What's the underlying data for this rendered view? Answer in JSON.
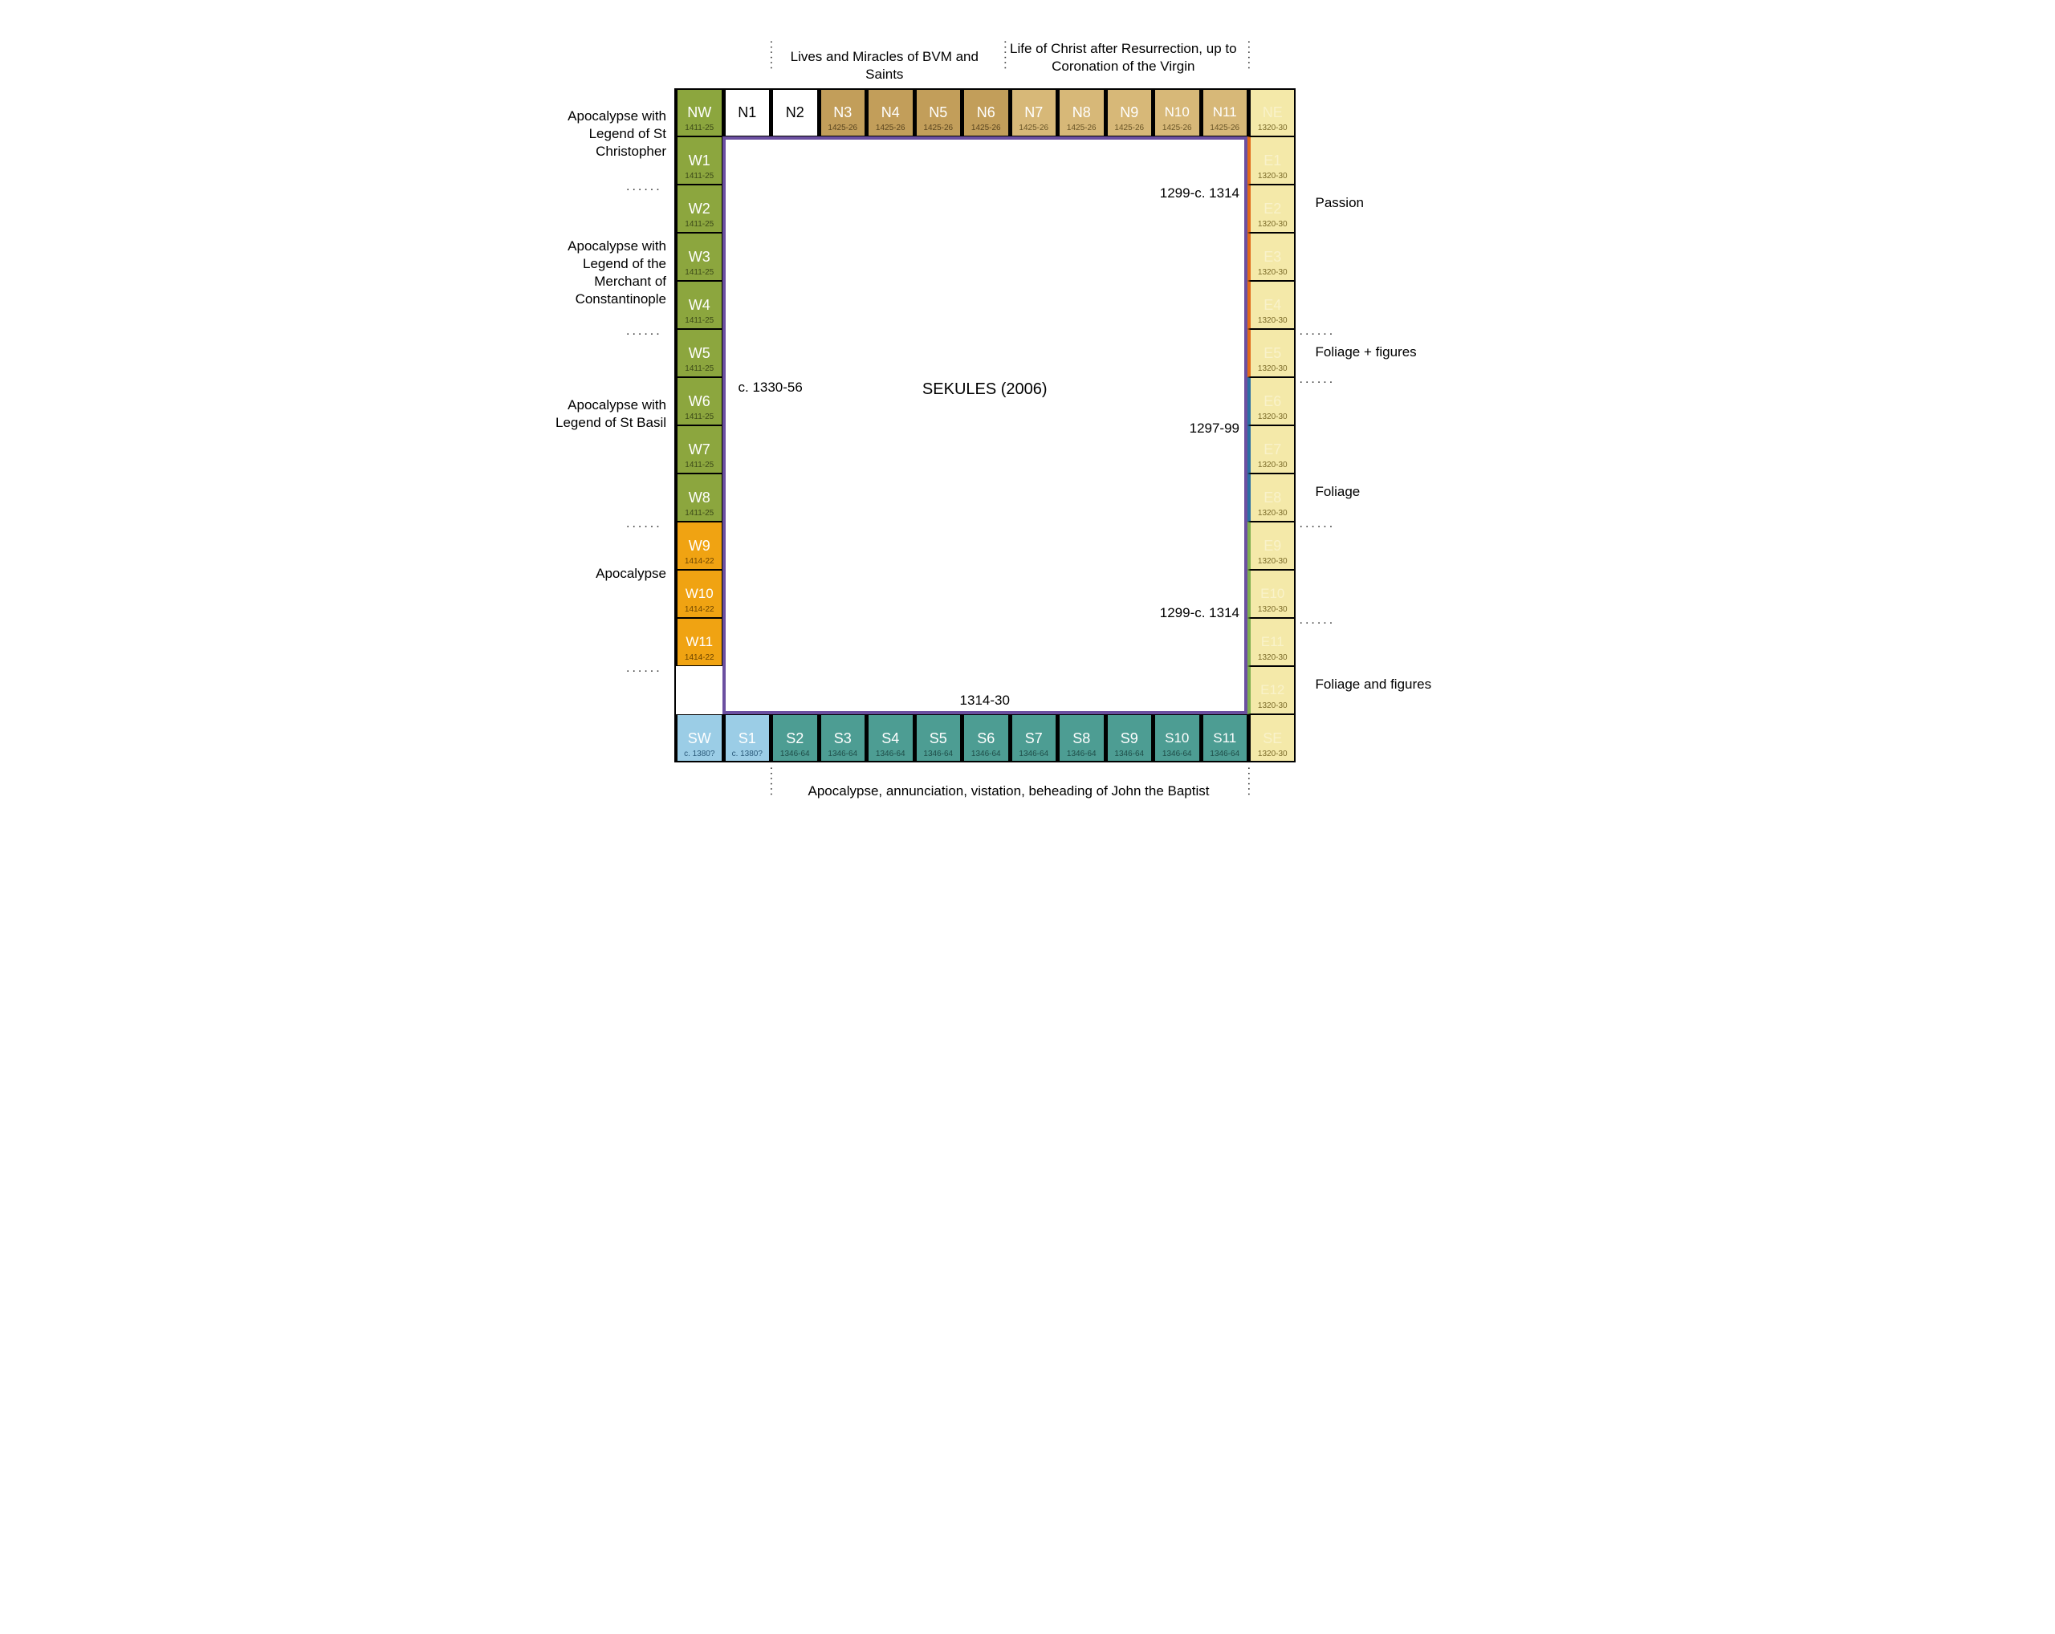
{
  "layout": {
    "ox": 200,
    "oy": 90,
    "cw": 62,
    "ch": 62,
    "ncw": 59.5,
    "nch": 60,
    "cols": 13,
    "rows": 14,
    "total_w": 1280,
    "total_h": 1018
  },
  "colors": {
    "green": "#8ca63e",
    "orange": "#f0a312",
    "lightblue": "#9bcde6",
    "tan": "#c29e5a",
    "lighttan": "#d7b878",
    "cream": "#f4e9a9",
    "teal": "#4d9d93",
    "teal_dark": "#3f8d84",
    "white": "#ffffff",
    "ne_yellow": "#f4e9a9",
    "blue_stroke": "#2b6fa3",
    "orange_stroke": "#e06a1a",
    "purple": "#6b4fa0",
    "green_stroke": "#7fae4f"
  },
  "cells": {
    "north": [
      {
        "code": "NW",
        "date": "1411-25",
        "bg": "green",
        "codeColor": "#fff",
        "dateColor": "#3c4a18"
      },
      {
        "code": "N1",
        "date": "",
        "bg": "white",
        "codeColor": "#000"
      },
      {
        "code": "N2",
        "date": "",
        "bg": "white",
        "codeColor": "#000"
      },
      {
        "code": "N3",
        "date": "1425-26",
        "bg": "tan",
        "codeColor": "#fff",
        "dateColor": "#5a4620"
      },
      {
        "code": "N4",
        "date": "1425-26",
        "bg": "tan",
        "codeColor": "#fff",
        "dateColor": "#5a4620"
      },
      {
        "code": "N5",
        "date": "1425-26",
        "bg": "tan",
        "codeColor": "#fff",
        "dateColor": "#5a4620"
      },
      {
        "code": "N6",
        "date": "1425-26",
        "bg": "tan",
        "codeColor": "#fff",
        "dateColor": "#5a4620"
      },
      {
        "code": "N7",
        "date": "1425-26",
        "bg": "lighttan",
        "codeColor": "#fff",
        "dateColor": "#6a5628"
      },
      {
        "code": "N8",
        "date": "1425-26",
        "bg": "lighttan",
        "codeColor": "#fff",
        "dateColor": "#6a5628"
      },
      {
        "code": "N9",
        "date": "1425-26",
        "bg": "lighttan",
        "codeColor": "#fff",
        "dateColor": "#6a5628"
      },
      {
        "code": "N10",
        "date": "1425-26",
        "bg": "lighttan",
        "codeColor": "#fff",
        "dateColor": "#6a5628"
      },
      {
        "code": "N11",
        "date": "1425-26",
        "bg": "lighttan",
        "codeColor": "#fff",
        "dateColor": "#6a5628"
      },
      {
        "code": "NE",
        "date": "1320-30",
        "bg": "ne_yellow",
        "codeColor": "#f9f2c9",
        "dateColor": "#7a6a28"
      }
    ],
    "west": [
      {
        "code": "W1",
        "date": "1411-25",
        "bg": "green",
        "codeColor": "#fff",
        "dateColor": "#3c4a18"
      },
      {
        "code": "W2",
        "date": "1411-25",
        "bg": "green",
        "codeColor": "#fff",
        "dateColor": "#3c4a18"
      },
      {
        "code": "W3",
        "date": "1411-25",
        "bg": "green",
        "codeColor": "#fff",
        "dateColor": "#3c4a18"
      },
      {
        "code": "W4",
        "date": "1411-25",
        "bg": "green",
        "codeColor": "#fff",
        "dateColor": "#3c4a18"
      },
      {
        "code": "W5",
        "date": "1411-25",
        "bg": "green",
        "codeColor": "#fff",
        "dateColor": "#3c4a18"
      },
      {
        "code": "W6",
        "date": "1411-25",
        "bg": "green",
        "codeColor": "#fff",
        "dateColor": "#3c4a18"
      },
      {
        "code": "W7",
        "date": "1411-25",
        "bg": "green",
        "codeColor": "#fff",
        "dateColor": "#3c4a18"
      },
      {
        "code": "W8",
        "date": "1411-25",
        "bg": "green",
        "codeColor": "#fff",
        "dateColor": "#3c4a18"
      },
      {
        "code": "W9",
        "date": "1414-22",
        "bg": "orange",
        "codeColor": "#fff",
        "dateColor": "#6b4400"
      },
      {
        "code": "W10",
        "date": "1414-22",
        "bg": "orange",
        "codeColor": "#fff",
        "dateColor": "#6b4400"
      },
      {
        "code": "W11",
        "date": "1414-22",
        "bg": "orange",
        "codeColor": "#fff",
        "dateColor": "#6b4400"
      }
    ],
    "east": [
      {
        "code": "E1",
        "date": "1320-30",
        "bg": "cream",
        "codeColor": "#f9f2c9",
        "dateColor": "#7a6a28",
        "stroke": "orange_stroke"
      },
      {
        "code": "E2",
        "date": "1320-30",
        "bg": "cream",
        "codeColor": "#f9f2c9",
        "dateColor": "#7a6a28",
        "stroke": "orange_stroke"
      },
      {
        "code": "E3",
        "date": "1320-30",
        "bg": "cream",
        "codeColor": "#f9f2c9",
        "dateColor": "#7a6a28",
        "stroke": "orange_stroke"
      },
      {
        "code": "E4",
        "date": "1320-30",
        "bg": "cream",
        "codeColor": "#f9f2c9",
        "dateColor": "#7a6a28",
        "stroke": "orange_stroke"
      },
      {
        "code": "E5",
        "date": "1320-30",
        "bg": "cream",
        "codeColor": "#f9f2c9",
        "dateColor": "#7a6a28",
        "stroke": "orange_stroke"
      },
      {
        "code": "E6",
        "date": "1320-30",
        "bg": "cream",
        "codeColor": "#f9f2c9",
        "dateColor": "#7a6a28",
        "stroke": "blue_stroke"
      },
      {
        "code": "E7",
        "date": "1320-30",
        "bg": "cream",
        "codeColor": "#f9f2c9",
        "dateColor": "#7a6a28",
        "stroke": "blue_stroke"
      },
      {
        "code": "E8",
        "date": "1320-30",
        "bg": "cream",
        "codeColor": "#f9f2c9",
        "dateColor": "#7a6a28",
        "stroke": "blue_stroke"
      },
      {
        "code": "E9",
        "date": "1320-30",
        "bg": "cream",
        "codeColor": "#f9f2c9",
        "dateColor": "#7a6a28",
        "stroke": "green_stroke"
      },
      {
        "code": "E10",
        "date": "1320-30",
        "bg": "cream",
        "codeColor": "#f9f2c9",
        "dateColor": "#7a6a28",
        "stroke": "green_stroke"
      },
      {
        "code": "E11",
        "date": "1320-30",
        "bg": "cream",
        "codeColor": "#f9f2c9",
        "dateColor": "#7a6a28",
        "stroke": "green_stroke"
      },
      {
        "code": "E12",
        "date": "1320-30",
        "bg": "cream",
        "codeColor": "#f9f2c9",
        "dateColor": "#7a6a28",
        "stroke": "green_stroke"
      }
    ],
    "south": [
      {
        "code": "SW",
        "date": "c. 1380?",
        "bg": "lightblue",
        "codeColor": "#fff",
        "dateColor": "#2b5a7a"
      },
      {
        "code": "S1",
        "date": "c. 1380?",
        "bg": "lightblue",
        "codeColor": "#fff",
        "dateColor": "#2b5a7a"
      },
      {
        "code": "S2",
        "date": "1346-64",
        "bg": "teal",
        "codeColor": "#fff",
        "dateColor": "#1f4d48"
      },
      {
        "code": "S3",
        "date": "1346-64",
        "bg": "teal",
        "codeColor": "#fff",
        "dateColor": "#1f4d48"
      },
      {
        "code": "S4",
        "date": "1346-64",
        "bg": "teal",
        "codeColor": "#fff",
        "dateColor": "#1f4d48"
      },
      {
        "code": "S5",
        "date": "1346-64",
        "bg": "teal",
        "codeColor": "#fff",
        "dateColor": "#1f4d48"
      },
      {
        "code": "S6",
        "date": "1346-64",
        "bg": "teal",
        "codeColor": "#fff",
        "dateColor": "#1f4d48"
      },
      {
        "code": "S7",
        "date": "1346-64",
        "bg": "teal",
        "codeColor": "#fff",
        "dateColor": "#1f4d48"
      },
      {
        "code": "S8",
        "date": "1346-64",
        "bg": "teal",
        "codeColor": "#fff",
        "dateColor": "#1f4d48"
      },
      {
        "code": "S9",
        "date": "1346-64",
        "bg": "teal",
        "codeColor": "#fff",
        "dateColor": "#1f4d48"
      },
      {
        "code": "S10",
        "date": "1346-64",
        "bg": "teal",
        "codeColor": "#fff",
        "dateColor": "#1f4d48"
      },
      {
        "code": "S11",
        "date": "1346-64",
        "bg": "teal",
        "codeColor": "#fff",
        "dateColor": "#1f4d48"
      },
      {
        "code": "SE",
        "date": "1320-30",
        "bg": "cream",
        "codeColor": "#f9f2c9",
        "dateColor": "#7a6a28"
      }
    ]
  },
  "labels": {
    "top1": "Lives and Miracles of BVM and Saints",
    "top2": "Life of Christ after Resurrection, up to Coronation of the Virgin",
    "left1": "Apocalypse with Legend of St Christopher",
    "left2": "Apocalypse with Legend of the Merchant of Constantinople",
    "left3": "Apocalypse with Legend of St Basil",
    "left4": "Apocalypse",
    "right1": "Passion",
    "right2": "Foliage + figures",
    "right3": "Foliage",
    "right4": "Foliage and figures",
    "bottom": "Apocalypse, annunciation, vistation, beheading of John the Baptist",
    "center_title": "SEKULES (2006)",
    "inner_w": "c. 1330-56",
    "inner_ne": "1299-c. 1314",
    "inner_e_mid": "1297-99",
    "inner_se": "1299-c. 1314",
    "inner_s": "1314-30"
  }
}
